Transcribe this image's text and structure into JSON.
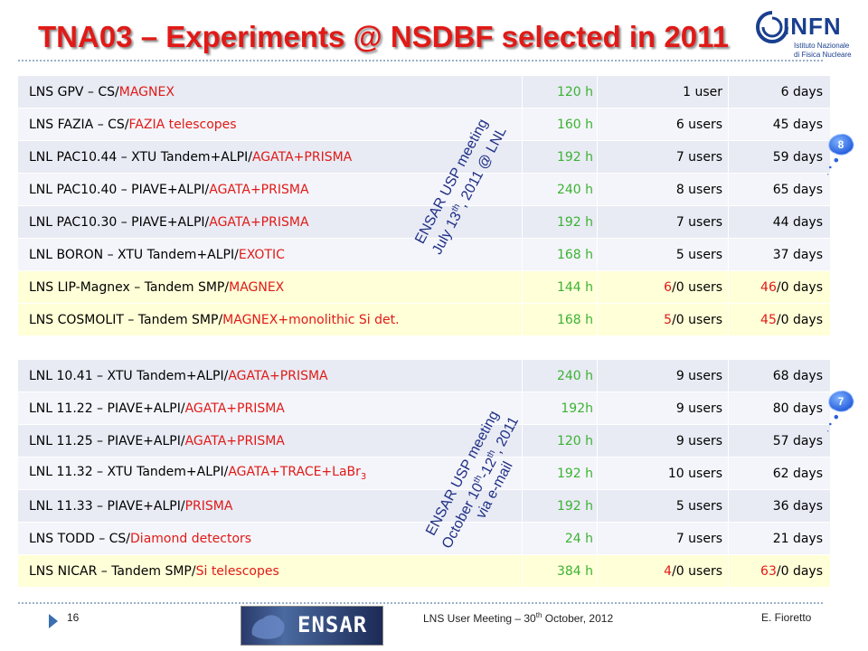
{
  "title": "TNA03 – Experiments @ NSDBF selected in 2011",
  "logo": {
    "name": "INFN",
    "line1": "Istituto Nazionale",
    "line2": "di Fisica Nucleare"
  },
  "colors": {
    "accent": "#e01a17",
    "hours": "#3cb233",
    "text_blue": "#1f2f86"
  },
  "table1": [
    {
      "lab": "LNS GPV – CS/",
      "setup": "MAGNEX",
      "hours": "120 h",
      "users_a": "",
      "users_b": "1 user",
      "days_a": "",
      "days_b": "6 days",
      "hl": false
    },
    {
      "lab": "LNS FAZIA – CS/",
      "setup": "FAZIA telescopes",
      "hours": "160 h",
      "users_a": "",
      "users_b": "6 users",
      "days_a": "",
      "days_b": "45 days",
      "hl": false
    },
    {
      "lab": "LNL PAC10.44 – XTU Tandem+ALPI/",
      "setup": "AGATA+PRISMA",
      "hours": "192 h",
      "users_a": "",
      "users_b": "7 users",
      "days_a": "",
      "days_b": "59 days",
      "hl": false
    },
    {
      "lab": "LNL PAC10.40 – PIAVE+ALPI/",
      "setup": "AGATA+PRISMA",
      "hours": "240 h",
      "users_a": "",
      "users_b": "8 users",
      "days_a": "",
      "days_b": "65 days",
      "hl": false
    },
    {
      "lab": "LNL PAC10.30 – PIAVE+ALPI/",
      "setup": "AGATA+PRISMA",
      "hours": "192 h",
      "users_a": "",
      "users_b": "7 users",
      "days_a": "",
      "days_b": "44 days",
      "hl": false
    },
    {
      "lab": "LNL BORON – XTU Tandem+ALPI/",
      "setup": "EXOTIC",
      "hours": "168 h",
      "users_a": "",
      "users_b": "5 users",
      "days_a": "",
      "days_b": "37 days",
      "hl": false
    },
    {
      "lab": "LNS LIP-Magnex – Tandem SMP/",
      "setup": "MAGNEX",
      "hours": "144 h",
      "users_a": "6",
      "users_b": "/0 users",
      "days_a": "46",
      "days_b": "/0 days",
      "hl": true
    },
    {
      "lab": "LNS COSMOLIT – Tandem SMP/",
      "setup": "MAGNEX+monolithic Si det.",
      "hours": "168 h",
      "users_a": "5",
      "users_b": "/0 users",
      "days_a": "45",
      "days_b": "/0 days",
      "hl": true
    }
  ],
  "table2": [
    {
      "lab": "LNL 10.41 – XTU Tandem+ALPI/",
      "setup": "AGATA+PRISMA",
      "sub": "",
      "hours": "240 h",
      "users_a": "",
      "users_b": "9 users",
      "days_a": "",
      "days_b": "68 days",
      "hl": false
    },
    {
      "lab": "LNL 11.22 – PIAVE+ALPI/",
      "setup": "AGATA+PRISMA",
      "sub": "",
      "hours": "192h",
      "users_a": "",
      "users_b": "9 users",
      "days_a": "",
      "days_b": "80 days",
      "hl": false
    },
    {
      "lab": "LNL 11.25 – PIAVE+ALPI/",
      "setup": "AGATA+PRISMA",
      "sub": "",
      "hours": "120 h",
      "users_a": "",
      "users_b": "9 users",
      "days_a": "",
      "days_b": "57 days",
      "hl": false
    },
    {
      "lab": "LNL 11.32 – XTU Tandem+ALPI/",
      "setup": "AGATA+TRACE+LaBr",
      "sub": "3",
      "hours": "192 h",
      "users_a": "",
      "users_b": "10 users",
      "days_a": "",
      "days_b": "62 days",
      "hl": false
    },
    {
      "lab": "LNL 11.33 – PIAVE+ALPI/",
      "setup": "PRISMA",
      "sub": "",
      "hours": "192 h",
      "users_a": "",
      "users_b": "5 users",
      "days_a": "",
      "days_b": "36 days",
      "hl": false
    },
    {
      "lab": "LNS TODD – CS/",
      "setup": "Diamond detectors",
      "sub": "",
      "hours": "24 h",
      "users_a": "",
      "users_b": "7 users",
      "days_a": "",
      "days_b": "21 days",
      "hl": false
    },
    {
      "lab": "LNS NICAR – Tandem SMP/",
      "setup": "Si telescopes",
      "sub": "",
      "hours": "384 h",
      "users_a": "4",
      "users_b": "/0 users",
      "days_a": "63",
      "days_b": "/0 days",
      "hl": true
    }
  ],
  "note1": {
    "line1": "ENSAR USP meeting",
    "line2a": "July 13",
    "line2sup": "th",
    "line2b": ", 2011 @ LNL"
  },
  "note2": {
    "line1": "ENSAR USP meeting",
    "line2a": "October 10",
    "line2sup1": "th",
    "line2b": "-12",
    "line2sup2": "th",
    "line2c": ", 2011",
    "line3": "via e-mail"
  },
  "badge1": "8",
  "badge2": "7",
  "footer": {
    "page": "16",
    "meeting_a": "LNS User Meeting – 30",
    "meeting_sup": "th",
    "meeting_b": " October, 2012",
    "author": "E. Fioretto",
    "ensar_logo": "ENSAR"
  }
}
